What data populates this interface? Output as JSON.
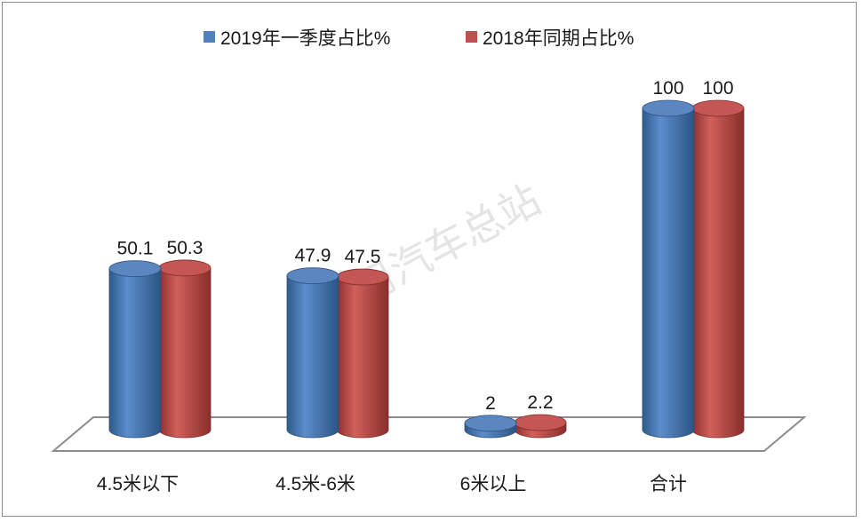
{
  "chart_data": {
    "type": "bar",
    "style": "3d-cylinder",
    "title": "",
    "xlabel": "",
    "ylabel": "",
    "categories": [
      "4.5米以下",
      "4.5米-6米",
      "6米以上",
      "合计"
    ],
    "series": [
      {
        "name": "2019年一季度占比%",
        "values": [
          50.1,
          47.9,
          2,
          100
        ],
        "labels": [
          "50.1",
          "47.9",
          "2",
          "100"
        ],
        "color": "#4f81bd"
      },
      {
        "name": "2018年同期占比%",
        "values": [
          50.3,
          47.5,
          2.2,
          100
        ],
        "labels": [
          "50.3",
          "47.5",
          "2.2",
          "100"
        ],
        "color": "#c0504d"
      }
    ],
    "ylim": [
      0,
      100
    ],
    "grid": false,
    "legend_position": "top-center",
    "watermark": "商用汽车总站"
  }
}
